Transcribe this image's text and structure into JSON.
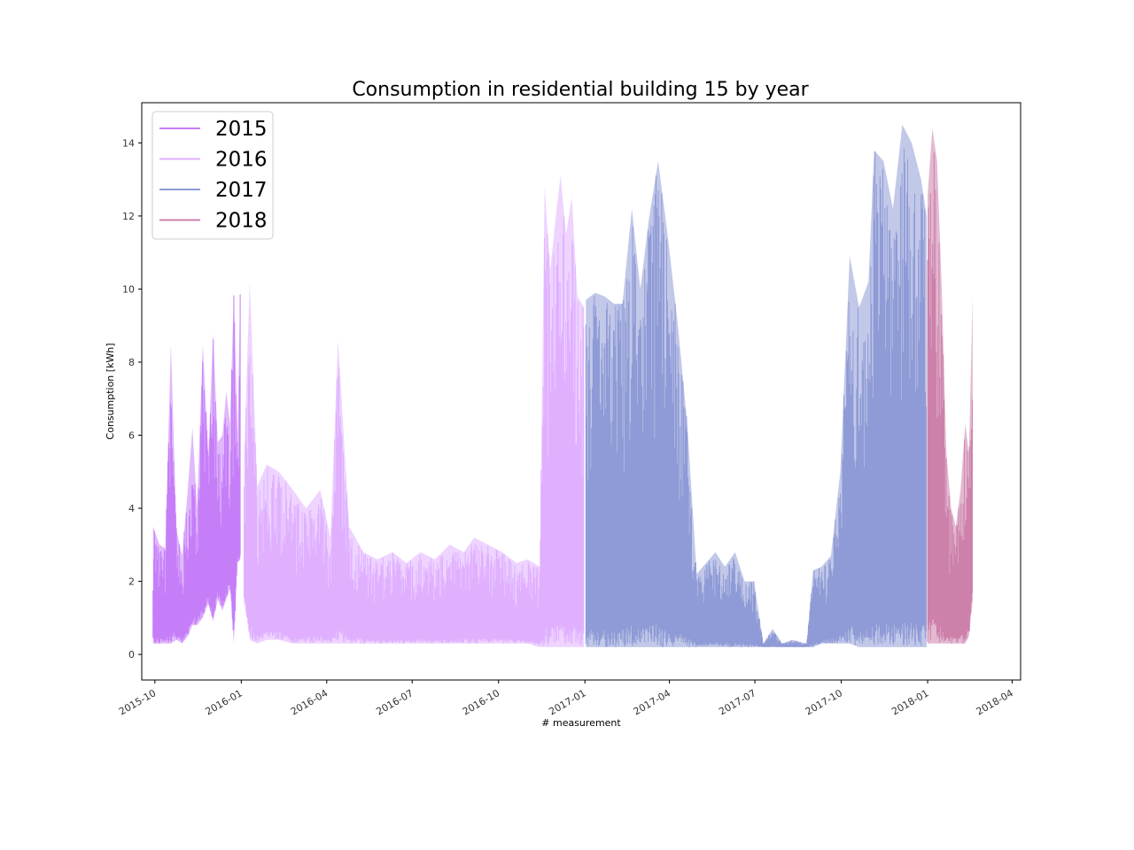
{
  "chart_data": {
    "type": "line",
    "title": "Consumption in residential building 15 by year",
    "xlabel": "# measurement",
    "ylabel": "Consumption [kWh]",
    "xlim": [
      "2015-09-17",
      "2018-04-10"
    ],
    "ylim": [
      -0.7,
      15.1
    ],
    "x_ticks": [
      "2015-10",
      "2016-01",
      "2016-04",
      "2016-07",
      "2016-10",
      "2017-01",
      "2017-04",
      "2017-07",
      "2017-10",
      "2018-01",
      "2018-04"
    ],
    "y_ticks": [
      0,
      2,
      4,
      6,
      8,
      10,
      12,
      14
    ],
    "legend_position": "top-left",
    "grid": false,
    "series": [
      {
        "name": "2015",
        "color": "#c67ef8",
        "points": [
          [
            "2015-09-29",
            0.3,
            3.5
          ],
          [
            "2015-10-06",
            0.3,
            3.0
          ],
          [
            "2015-10-12",
            0.3,
            2.9
          ],
          [
            "2015-10-18",
            0.3,
            8.5
          ],
          [
            "2015-10-24",
            0.4,
            3.4
          ],
          [
            "2015-10-30",
            0.3,
            2.7
          ],
          [
            "2015-11-05",
            0.5,
            4.5
          ],
          [
            "2015-11-10",
            0.8,
            6.2
          ],
          [
            "2015-11-15",
            0.8,
            4.0
          ],
          [
            "2015-11-21",
            1.0,
            8.5
          ],
          [
            "2015-11-27",
            1.4,
            5.5
          ],
          [
            "2015-12-02",
            0.9,
            8.8
          ],
          [
            "2015-12-07",
            1.5,
            5.8
          ],
          [
            "2015-12-12",
            1.2,
            6.0
          ],
          [
            "2015-12-16",
            1.5,
            7.2
          ],
          [
            "2015-12-20",
            1.8,
            6.3
          ],
          [
            "2015-12-24",
            0.3,
            9.9
          ],
          [
            "2015-12-28",
            2.5,
            6.0
          ],
          [
            "2015-12-31",
            2.6,
            10.1
          ]
        ]
      },
      {
        "name": "2016",
        "color": "#e0b0ff",
        "points": [
          [
            "2016-01-04",
            1.5,
            5.4
          ],
          [
            "2016-01-10",
            0.4,
            10.2
          ],
          [
            "2016-01-18",
            0.3,
            4.6
          ],
          [
            "2016-01-28",
            0.4,
            5.2
          ],
          [
            "2016-02-10",
            0.4,
            5.0
          ],
          [
            "2016-02-25",
            0.3,
            4.5
          ],
          [
            "2016-03-10",
            0.3,
            4.0
          ],
          [
            "2016-03-25",
            0.3,
            4.5
          ],
          [
            "2016-04-05",
            0.3,
            3.2
          ],
          [
            "2016-04-13",
            0.3,
            8.6
          ],
          [
            "2016-04-25",
            0.3,
            3.5
          ],
          [
            "2016-05-10",
            0.3,
            2.8
          ],
          [
            "2016-05-25",
            0.3,
            2.6
          ],
          [
            "2016-06-10",
            0.3,
            2.8
          ],
          [
            "2016-06-25",
            0.3,
            2.5
          ],
          [
            "2016-07-10",
            0.3,
            2.8
          ],
          [
            "2016-07-25",
            0.3,
            2.6
          ],
          [
            "2016-08-10",
            0.3,
            3.0
          ],
          [
            "2016-08-25",
            0.3,
            2.8
          ],
          [
            "2016-09-05",
            0.3,
            3.2
          ],
          [
            "2016-09-20",
            0.3,
            3.0
          ],
          [
            "2016-10-05",
            0.3,
            2.8
          ],
          [
            "2016-10-20",
            0.3,
            2.5
          ],
          [
            "2016-11-01",
            0.3,
            2.6
          ],
          [
            "2016-11-14",
            0.2,
            2.4
          ],
          [
            "2016-11-19",
            0.2,
            12.8
          ],
          [
            "2016-11-25",
            0.2,
            10.5
          ],
          [
            "2016-12-01",
            0.2,
            12.0
          ],
          [
            "2016-12-06",
            0.2,
            13.1
          ],
          [
            "2016-12-12",
            0.2,
            11.5
          ],
          [
            "2016-12-18",
            0.2,
            12.5
          ],
          [
            "2016-12-24",
            0.2,
            9.8
          ],
          [
            "2016-12-31",
            0.2,
            9.5
          ]
        ]
      },
      {
        "name": "2017",
        "color": "#8f9bd6",
        "points": [
          [
            "2017-01-02",
            0.2,
            9.7
          ],
          [
            "2017-01-12",
            0.2,
            9.9
          ],
          [
            "2017-01-22",
            0.2,
            9.8
          ],
          [
            "2017-02-01",
            0.2,
            9.6
          ],
          [
            "2017-02-10",
            0.2,
            9.6
          ],
          [
            "2017-02-20",
            0.2,
            12.2
          ],
          [
            "2017-03-01",
            0.2,
            10.0
          ],
          [
            "2017-03-10",
            0.2,
            11.9
          ],
          [
            "2017-03-20",
            0.2,
            13.5
          ],
          [
            "2017-03-30",
            0.2,
            11.5
          ],
          [
            "2017-04-10",
            0.2,
            9.0
          ],
          [
            "2017-04-20",
            0.2,
            6.3
          ],
          [
            "2017-04-30",
            0.2,
            2.2
          ],
          [
            "2017-05-10",
            0.2,
            2.5
          ],
          [
            "2017-05-20",
            0.2,
            2.8
          ],
          [
            "2017-05-30",
            0.2,
            2.4
          ],
          [
            "2017-06-10",
            0.2,
            2.8
          ],
          [
            "2017-06-20",
            0.2,
            2.0
          ],
          [
            "2017-06-30",
            0.2,
            2.0
          ],
          [
            "2017-07-10",
            0.2,
            0.3
          ],
          [
            "2017-07-20",
            0.2,
            0.7
          ],
          [
            "2017-07-30",
            0.2,
            0.3
          ],
          [
            "2017-08-10",
            0.2,
            0.4
          ],
          [
            "2017-08-25",
            0.2,
            0.3
          ],
          [
            "2017-09-01",
            0.2,
            2.3
          ],
          [
            "2017-09-10",
            0.3,
            2.4
          ],
          [
            "2017-09-20",
            0.3,
            2.7
          ],
          [
            "2017-09-30",
            0.3,
            5.0
          ],
          [
            "2017-10-10",
            0.3,
            10.9
          ],
          [
            "2017-10-20",
            0.2,
            9.5
          ],
          [
            "2017-10-30",
            0.2,
            10.2
          ],
          [
            "2017-11-05",
            0.2,
            13.8
          ],
          [
            "2017-11-15",
            0.2,
            13.5
          ],
          [
            "2017-11-25",
            0.2,
            12.2
          ],
          [
            "2017-12-05",
            0.2,
            14.5
          ],
          [
            "2017-12-15",
            0.2,
            14.0
          ],
          [
            "2017-12-25",
            0.2,
            13.0
          ],
          [
            "2017-12-31",
            0.2,
            12.0
          ]
        ]
      },
      {
        "name": "2018",
        "color": "#cc80aa",
        "points": [
          [
            "2018-01-01",
            0.3,
            12.6
          ],
          [
            "2018-01-06",
            0.3,
            14.4
          ],
          [
            "2018-01-11",
            0.3,
            13.5
          ],
          [
            "2018-01-16",
            0.3,
            10.0
          ],
          [
            "2018-01-21",
            0.3,
            5.5
          ],
          [
            "2018-01-26",
            0.3,
            4.0
          ],
          [
            "2018-01-31",
            0.3,
            3.5
          ],
          [
            "2018-02-05",
            0.3,
            4.5
          ],
          [
            "2018-02-10",
            0.3,
            6.3
          ],
          [
            "2018-02-14",
            0.5,
            5.5
          ],
          [
            "2018-02-18",
            1.5,
            9.8
          ]
        ]
      }
    ]
  }
}
